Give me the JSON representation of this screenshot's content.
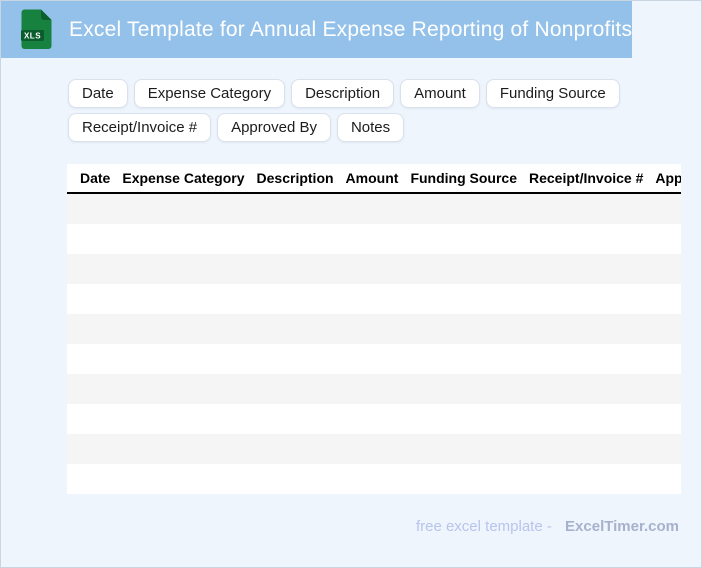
{
  "header": {
    "title": "Excel Template for Annual Expense Reporting of Nonprofits",
    "icon_label": "XLS",
    "bar_color": "#93c1ea"
  },
  "chips": {
    "items": [
      "Date",
      "Expense Category",
      "Description",
      "Amount",
      "Funding Source",
      "Receipt/Invoice #",
      "Approved By",
      "Notes"
    ]
  },
  "table": {
    "columns": [
      "Date",
      "Expense Category",
      "Description",
      "Amount",
      "Funding Source",
      "Receipt/Invoice #",
      "Approved By"
    ],
    "empty_row_count": 10,
    "stripe_color": "#f5f5f6"
  },
  "footer": {
    "text": "free excel template -",
    "brand": "ExcelTimer.com"
  },
  "colors": {
    "page_bg": "#eff5fc",
    "header_bar": "#93c1ea",
    "icon_green": "#17823f",
    "icon_dark_green": "#0b5c2d",
    "footer_text": "#b7c4ed",
    "footer_brand": "#a6b1cd"
  }
}
